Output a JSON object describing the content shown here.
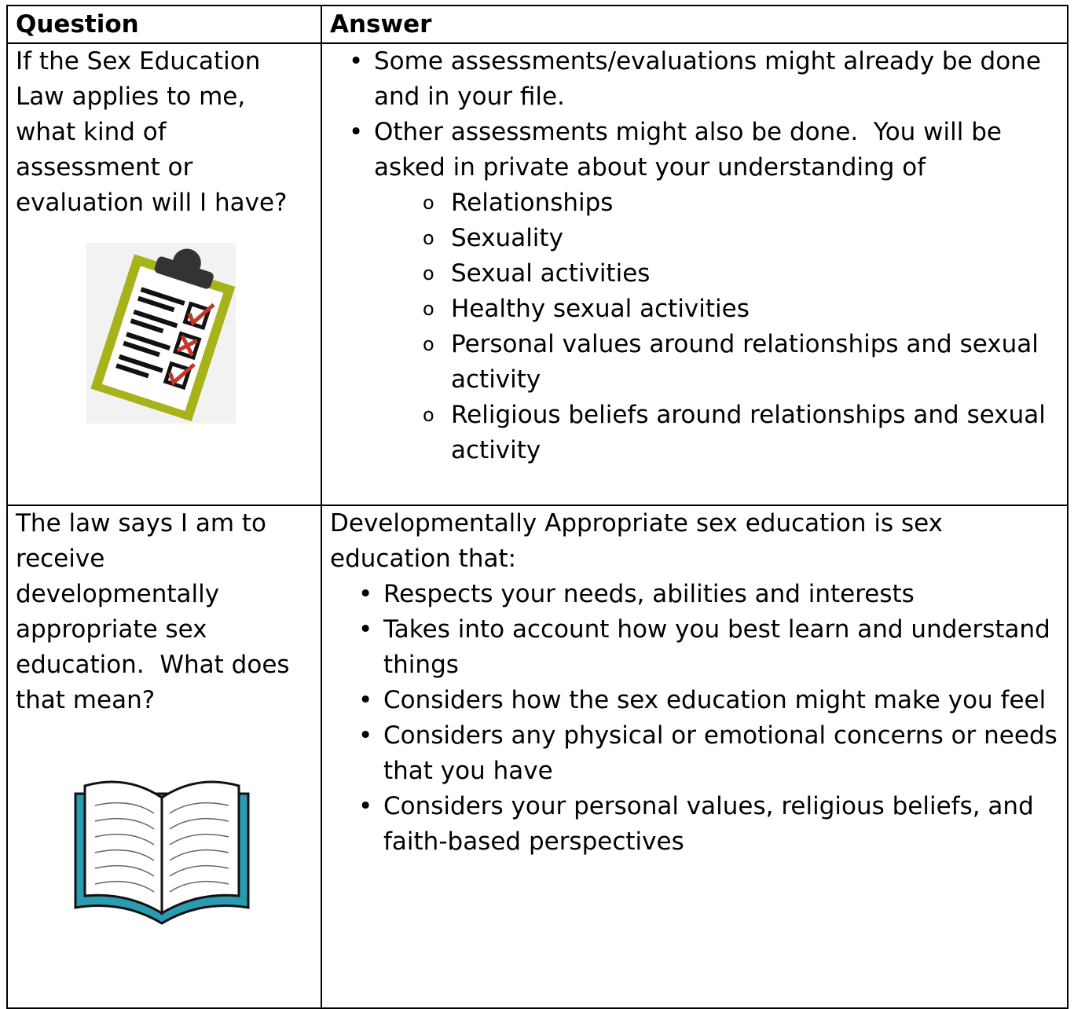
{
  "table": {
    "header": [
      "Question",
      "Answer"
    ],
    "rows": [
      {
        "question": "If the Sex Education Law applies to me, what kind of assessment or evaluation will I have?",
        "answer": {
          "items": [
            {
              "text": "Some assessments/evaluations might already be done and in your file.",
              "subitems": []
            },
            {
              "text": "Other assessments might also be done.  You will be asked in private about your understanding of",
              "subitems": [
                "Relationships",
                "Sexuality",
                "Sexual activities",
                "Healthy sexual activities",
                "Personal values around relationships and sexual activity",
                "Religious beliefs around relationships and sexual activity"
              ]
            }
          ]
        }
      },
      {
        "question": "The law says I am to receive developmentally appropriate sex education.  What does that mean?",
        "answer": {
          "intro": "Developmentally Appropriate sex education is sex education that:",
          "items": [
            {
              "text": "Respects your needs, abilities and interests",
              "subitems": []
            },
            {
              "text": "Takes into account how you best learn and understand things",
              "subitems": []
            },
            {
              "text": "Considers how the sex education might make you feel",
              "subitems": []
            },
            {
              "text": "Considers any physical or emotional concerns or needs that you have",
              "subitems": []
            },
            {
              "text": "Considers your personal values, religious beliefs, and faith-based perspectives",
              "subitems": []
            }
          ]
        }
      }
    ]
  }
}
